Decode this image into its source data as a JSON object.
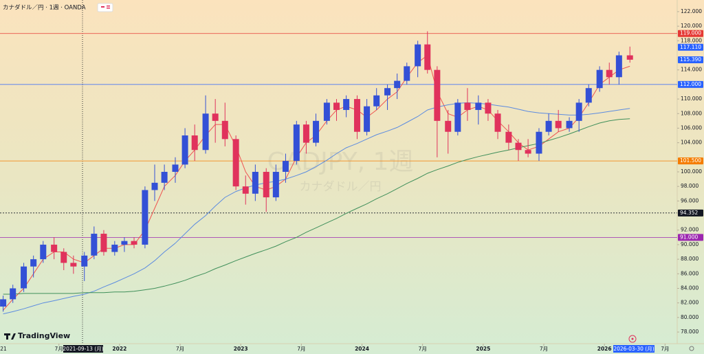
{
  "chart_data": {
    "type": "candlestick",
    "title": "カナダドル／円 · 1週 · OANDA",
    "watermark": "CADJPY, 1週",
    "watermark_subtitle": "カナダドル／円",
    "logo": "TradingView",
    "crosshair_date": "2021-09-13 (月)",
    "last_date": "2026-03-30 (月)",
    "up_color": "#3350d6",
    "down_color": "#e0325c",
    "xlim": [
      2021.014,
      2026.6
    ],
    "ylim": [
      76.4,
      123.6
    ],
    "xticks": [
      {
        "value": 2021,
        "label": "21"
      },
      {
        "value": 2021.5,
        "label": "7月"
      },
      2022,
      {
        "value": 2022.5,
        "label": "7月"
      },
      2023,
      {
        "value": 2023.5,
        "label": "7月"
      },
      2024,
      {
        "value": 2024.5,
        "label": "7月"
      },
      2025,
      {
        "value": 2025.5,
        "label": "7月"
      },
      2026,
      {
        "value": 2026.5,
        "label": "7月"
      }
    ],
    "yticks": [
      {
        "value": 78,
        "label": "78.000"
      },
      {
        "value": 80,
        "label": "80.000"
      },
      {
        "value": 82,
        "label": "82.000"
      },
      {
        "value": 84,
        "label": "84.000"
      },
      {
        "value": 86,
        "label": "86.000"
      },
      {
        "value": 88,
        "label": "88.000"
      },
      {
        "value": 90,
        "label": "90.000"
      },
      {
        "value": 92,
        "label": "92.000"
      },
      {
        "value": 96,
        "label": "96.000"
      },
      {
        "value": 98,
        "label": "98.000"
      },
      {
        "value": 100,
        "label": "100.000"
      },
      {
        "value": 104,
        "label": "104.000"
      },
      {
        "value": 106,
        "label": "106.000"
      },
      {
        "value": 108,
        "label": "108.000"
      },
      {
        "value": 110,
        "label": "110.000"
      },
      {
        "value": 114,
        "label": "114.000"
      },
      {
        "value": 118,
        "label": "118.000"
      },
      {
        "value": 120,
        "label": "120.000"
      },
      {
        "value": 122,
        "label": "122.000"
      }
    ],
    "levels": [
      {
        "value": 119,
        "label": "119.000",
        "color": "#e53935"
      },
      {
        "value": 112,
        "label": "112.000",
        "color": "#2962ff"
      },
      {
        "value": 101.5,
        "label": "101.500",
        "color": "#f57c00"
      },
      {
        "value": 94.352,
        "label": "94.352",
        "color": "#131722"
      },
      {
        "value": 91,
        "label": "91.000",
        "color": "#9c27b0"
      }
    ],
    "price_labels": [
      {
        "value": 117.11,
        "label": "117.110"
      },
      {
        "value": 115.39,
        "label": "115.390"
      }
    ],
    "x": [
      2021.04,
      2021.12,
      2021.21,
      2021.29,
      2021.37,
      2021.46,
      2021.54,
      2021.62,
      2021.71,
      2021.79,
      2021.87,
      2021.96,
      2022.04,
      2022.12,
      2022.21,
      2022.29,
      2022.37,
      2022.46,
      2022.54,
      2022.62,
      2022.71,
      2022.79,
      2022.87,
      2022.96,
      2023.04,
      2023.12,
      2023.21,
      2023.29,
      2023.37,
      2023.46,
      2023.54,
      2023.62,
      2023.71,
      2023.79,
      2023.87,
      2023.96,
      2024.04,
      2024.12,
      2024.21,
      2024.29,
      2024.37,
      2024.46,
      2024.54,
      2024.62,
      2024.71,
      2024.79,
      2024.87,
      2024.96,
      2025.04,
      2025.12,
      2025.21,
      2025.29,
      2025.37,
      2025.46,
      2025.54,
      2025.62,
      2025.71,
      2025.79,
      2025.87,
      2025.96,
      2026.04,
      2026.12,
      2026.21
    ],
    "open": [
      81.5,
      82.5,
      84,
      87,
      88,
      90,
      89,
      87.5,
      87,
      88.5,
      91.5,
      89,
      90,
      90.5,
      90,
      97.5,
      98.5,
      100,
      101,
      105,
      103,
      108,
      107,
      104.5,
      98,
      97,
      100,
      96.5,
      100,
      101.5,
      106.5,
      104,
      107,
      109.5,
      108.5,
      110,
      105.5,
      109,
      110.5,
      111.5,
      112.5,
      114.5,
      117.5,
      114,
      107,
      105.5,
      109.5,
      108.5,
      109.5,
      108,
      105.5,
      104,
      103,
      102.5,
      105.5,
      107,
      106,
      107,
      109.5,
      111.5,
      114,
      113,
      116
    ],
    "high": [
      83,
      84.5,
      87.5,
      88.5,
      90.5,
      91,
      89.5,
      88.5,
      89,
      92.5,
      92,
      90.5,
      91,
      91,
      98,
      101,
      101,
      102,
      106,
      106.5,
      110.5,
      110,
      109.5,
      105,
      99.5,
      101,
      100.5,
      101,
      102.5,
      107,
      107,
      108,
      110,
      110,
      110.5,
      110.5,
      110,
      111.5,
      112,
      113.5,
      115,
      118,
      119.3,
      114.5,
      108.5,
      110,
      111.5,
      110.5,
      110,
      108.5,
      106.5,
      104.5,
      104.5,
      106,
      108,
      108.5,
      107.5,
      110,
      112,
      114.5,
      115,
      116.5,
      117.2
    ],
    "low": [
      80.8,
      82,
      83.5,
      85.5,
      87.5,
      88,
      86.5,
      86,
      85,
      88,
      88.5,
      88.5,
      89,
      89.5,
      89.5,
      96,
      97.5,
      98.5,
      100.5,
      101.5,
      102.5,
      104,
      103.5,
      97.5,
      95.5,
      96,
      94.5,
      96,
      98.5,
      101,
      102.5,
      103.5,
      106.5,
      107,
      107.5,
      104.5,
      105,
      108.5,
      108.5,
      110,
      112,
      113,
      113.5,
      102,
      102.5,
      105,
      107,
      106.5,
      107,
      104.5,
      103,
      101.5,
      102,
      101.5,
      105,
      105.5,
      105.5,
      105.5,
      109,
      111,
      112,
      112,
      115
    ],
    "close": [
      82.5,
      84,
      87,
      88,
      90,
      89,
      87.5,
      87,
      88.5,
      91.5,
      89,
      90,
      90.5,
      90,
      97.5,
      98.5,
      100,
      101,
      105,
      103,
      108,
      107,
      104.5,
      98,
      97,
      100,
      96.5,
      100,
      101.5,
      106.5,
      104,
      107,
      109.5,
      108.5,
      110,
      105.5,
      109,
      110.5,
      111.5,
      112.5,
      114.5,
      117.5,
      114,
      107,
      105.5,
      109.5,
      108.5,
      109.5,
      108,
      105.5,
      104,
      103,
      102.5,
      105.5,
      107,
      106,
      107,
      109.5,
      111.5,
      114,
      113,
      116,
      115.4
    ],
    "moving_averages": [
      {
        "color": "#ef5350",
        "values": [
          81,
          82.5,
          84,
          86,
          88,
          89,
          89,
          88,
          87.5,
          88.5,
          89.5,
          89.5,
          90,
          90,
          92,
          95,
          98,
          99.5,
          101.5,
          103,
          105,
          106.5,
          106.5,
          103.5,
          100,
          98,
          97.5,
          98,
          99,
          102,
          104,
          105,
          107,
          108.5,
          109,
          108.5,
          107.5,
          108.5,
          110,
          111,
          113,
          115,
          116,
          111,
          108,
          107.5,
          108.5,
          109,
          108.5,
          107,
          105.5,
          104,
          103,
          103.5,
          104.5,
          105.5,
          106,
          107.5,
          109.5,
          112,
          113,
          114,
          114.5
        ]
      },
      {
        "color": "#5b8be0",
        "values": [
          80.5,
          80.8,
          81.2,
          81.6,
          82,
          82.3,
          82.6,
          82.9,
          83.2,
          83.6,
          84.2,
          84.8,
          85.4,
          86,
          86.8,
          87.8,
          89,
          90.2,
          91.5,
          92.8,
          94,
          95.3,
          96.5,
          97.3,
          97.8,
          98.2,
          98.5,
          98.7,
          99,
          99.5,
          100,
          100.7,
          101.6,
          102.5,
          103.3,
          103.9,
          104.5,
          105.1,
          105.6,
          106.1,
          106.8,
          107.6,
          108.5,
          108.9,
          109.2,
          109.4,
          109.5,
          109.4,
          109.3,
          109.1,
          108.9,
          108.6,
          108.3,
          108.1,
          108,
          107.9,
          107.8,
          107.8,
          107.9,
          108.1,
          108.3,
          108.5,
          108.7
        ]
      },
      {
        "color": "#3f8f5a",
        "values": [
          83.2,
          83.2,
          83.3,
          83.3,
          83.3,
          83.3,
          83.3,
          83.3,
          83.4,
          83.4,
          83.4,
          83.5,
          83.5,
          83.6,
          83.8,
          84,
          84.3,
          84.7,
          85.1,
          85.6,
          86.1,
          86.7,
          87.2,
          87.8,
          88.3,
          88.8,
          89.3,
          89.8,
          90.4,
          91,
          91.7,
          92.3,
          93,
          93.6,
          94.3,
          95,
          95.6,
          96.3,
          97,
          97.7,
          98.4,
          99.1,
          99.8,
          100.3,
          100.8,
          101.3,
          101.7,
          102.1,
          102.4,
          102.7,
          103,
          103.3,
          103.6,
          103.9,
          104.3,
          104.7,
          105.2,
          105.7,
          106.2,
          106.7,
          107,
          107.2,
          107.3
        ]
      }
    ]
  }
}
